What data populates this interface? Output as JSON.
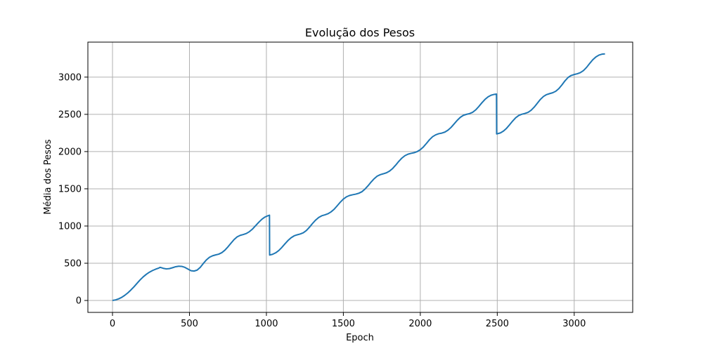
{
  "chart_data": {
    "type": "line",
    "title": "Evolução dos Pesos",
    "xlabel": "Epoch",
    "ylabel": "Média dos Pesos",
    "xlim": [
      -160,
      3380
    ],
    "ylim": [
      -160,
      3470
    ],
    "xticks": [
      0,
      500,
      1000,
      1500,
      2000,
      2500,
      3000
    ],
    "yticks": [
      0,
      500,
      1000,
      1500,
      2000,
      2500,
      3000
    ],
    "grid": true,
    "series": [
      {
        "color": "#1f77b4",
        "points": [
          [
            0,
            0
          ],
          [
            20,
            8
          ],
          [
            40,
            22
          ],
          [
            60,
            42
          ],
          [
            80,
            70
          ],
          [
            100,
            103
          ],
          [
            120,
            142
          ],
          [
            140,
            185
          ],
          [
            160,
            232
          ],
          [
            180,
            278
          ],
          [
            200,
            318
          ],
          [
            220,
            352
          ],
          [
            240,
            380
          ],
          [
            260,
            402
          ],
          [
            280,
            420
          ],
          [
            300,
            435
          ],
          [
            310,
            445
          ],
          [
            330,
            432
          ],
          [
            350,
            424
          ],
          [
            370,
            428
          ],
          [
            390,
            440
          ],
          [
            410,
            453
          ],
          [
            430,
            460
          ],
          [
            450,
            458
          ],
          [
            470,
            445
          ],
          [
            490,
            422
          ],
          [
            510,
            400
          ],
          [
            530,
            395
          ],
          [
            550,
            408
          ],
          [
            570,
            445
          ],
          [
            590,
            497
          ],
          [
            610,
            545
          ],
          [
            630,
            580
          ],
          [
            650,
            600
          ],
          [
            670,
            612
          ],
          [
            690,
            622
          ],
          [
            710,
            642
          ],
          [
            730,
            675
          ],
          [
            750,
            720
          ],
          [
            770,
            770
          ],
          [
            790,
            818
          ],
          [
            810,
            855
          ],
          [
            830,
            875
          ],
          [
            850,
            886
          ],
          [
            870,
            900
          ],
          [
            890,
            925
          ],
          [
            910,
            960
          ],
          [
            930,
            1005
          ],
          [
            950,
            1050
          ],
          [
            970,
            1090
          ],
          [
            990,
            1120
          ],
          [
            1010,
            1138
          ],
          [
            1020,
            1145
          ],
          [
            1021,
            610
          ],
          [
            1040,
            620
          ],
          [
            1060,
            640
          ],
          [
            1080,
            670
          ],
          [
            1100,
            712
          ],
          [
            1120,
            760
          ],
          [
            1140,
            805
          ],
          [
            1160,
            842
          ],
          [
            1180,
            868
          ],
          [
            1200,
            882
          ],
          [
            1220,
            893
          ],
          [
            1240,
            910
          ],
          [
            1260,
            940
          ],
          [
            1280,
            985
          ],
          [
            1300,
            1035
          ],
          [
            1320,
            1080
          ],
          [
            1340,
            1115
          ],
          [
            1360,
            1138
          ],
          [
            1380,
            1150
          ],
          [
            1400,
            1165
          ],
          [
            1420,
            1190
          ],
          [
            1440,
            1225
          ],
          [
            1460,
            1272
          ],
          [
            1480,
            1320
          ],
          [
            1500,
            1362
          ],
          [
            1520,
            1392
          ],
          [
            1540,
            1410
          ],
          [
            1560,
            1420
          ],
          [
            1580,
            1428
          ],
          [
            1600,
            1440
          ],
          [
            1620,
            1460
          ],
          [
            1640,
            1495
          ],
          [
            1660,
            1540
          ],
          [
            1680,
            1590
          ],
          [
            1700,
            1635
          ],
          [
            1720,
            1670
          ],
          [
            1740,
            1690
          ],
          [
            1760,
            1702
          ],
          [
            1780,
            1715
          ],
          [
            1800,
            1738
          ],
          [
            1820,
            1772
          ],
          [
            1840,
            1818
          ],
          [
            1860,
            1868
          ],
          [
            1880,
            1912
          ],
          [
            1900,
            1945
          ],
          [
            1920,
            1965
          ],
          [
            1940,
            1976
          ],
          [
            1960,
            1985
          ],
          [
            1980,
            2000
          ],
          [
            2000,
            2025
          ],
          [
            2020,
            2062
          ],
          [
            2040,
            2110
          ],
          [
            2060,
            2160
          ],
          [
            2080,
            2200
          ],
          [
            2100,
            2225
          ],
          [
            2120,
            2240
          ],
          [
            2140,
            2248
          ],
          [
            2160,
            2262
          ],
          [
            2180,
            2288
          ],
          [
            2200,
            2325
          ],
          [
            2220,
            2372
          ],
          [
            2240,
            2420
          ],
          [
            2260,
            2460
          ],
          [
            2280,
            2487
          ],
          [
            2300,
            2500
          ],
          [
            2320,
            2510
          ],
          [
            2340,
            2528
          ],
          [
            2360,
            2560
          ],
          [
            2380,
            2605
          ],
          [
            2400,
            2655
          ],
          [
            2420,
            2700
          ],
          [
            2440,
            2735
          ],
          [
            2460,
            2757
          ],
          [
            2480,
            2768
          ],
          [
            2495,
            2772
          ],
          [
            2496,
            2237
          ],
          [
            2520,
            2250
          ],
          [
            2540,
            2275
          ],
          [
            2560,
            2312
          ],
          [
            2580,
            2360
          ],
          [
            2600,
            2410
          ],
          [
            2620,
            2455
          ],
          [
            2640,
            2485
          ],
          [
            2660,
            2502
          ],
          [
            2680,
            2512
          ],
          [
            2700,
            2527
          ],
          [
            2720,
            2555
          ],
          [
            2740,
            2597
          ],
          [
            2760,
            2648
          ],
          [
            2780,
            2700
          ],
          [
            2800,
            2740
          ],
          [
            2820,
            2765
          ],
          [
            2840,
            2778
          ],
          [
            2860,
            2790
          ],
          [
            2880,
            2810
          ],
          [
            2900,
            2845
          ],
          [
            2920,
            2895
          ],
          [
            2940,
            2950
          ],
          [
            2960,
            2995
          ],
          [
            2980,
            3022
          ],
          [
            3000,
            3035
          ],
          [
            3020,
            3045
          ],
          [
            3040,
            3060
          ],
          [
            3060,
            3088
          ],
          [
            3080,
            3130
          ],
          [
            3100,
            3182
          ],
          [
            3120,
            3232
          ],
          [
            3140,
            3270
          ],
          [
            3160,
            3295
          ],
          [
            3180,
            3308
          ],
          [
            3200,
            3312
          ]
        ]
      }
    ]
  }
}
